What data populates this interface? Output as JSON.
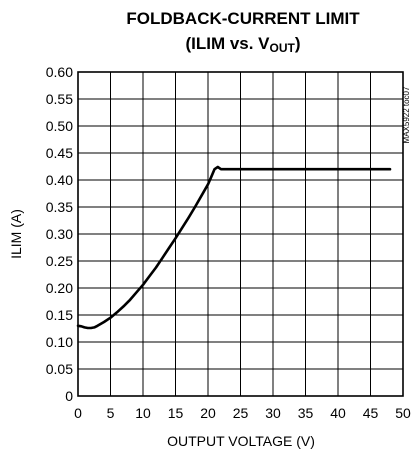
{
  "chart_data": {
    "type": "line",
    "title": "FOLDBACK-CURRENT LIMIT",
    "subtitle": {
      "prefix": "(ILIM vs. V",
      "subscript": "OUT",
      "suffix": ")"
    },
    "xlabel": "OUTPUT VOLTAGE (V)",
    "ylabel": "ILIM (A)",
    "xlim": [
      0,
      50
    ],
    "ylim": [
      0,
      0.6
    ],
    "x_ticks": [
      "0",
      "5",
      "10",
      "15",
      "20",
      "25",
      "30",
      "35",
      "40",
      "45",
      "50"
    ],
    "y_ticks": [
      "0",
      "0.05",
      "0.10",
      "0.15",
      "0.20",
      "0.25",
      "0.30",
      "0.35",
      "0.40",
      "0.45",
      "0.50",
      "0.55",
      "0.60"
    ],
    "grid": true,
    "legend": "none",
    "annotation": "MAX5922 toc07",
    "series": [
      {
        "color": "#000000",
        "x": [
          0,
          0.5,
          1.0,
          1.5,
          2.0,
          2.5,
          3,
          4,
          5,
          6,
          7,
          8,
          9,
          10,
          11,
          12,
          13,
          14,
          15,
          16,
          17,
          18,
          19,
          20,
          20.5,
          21,
          21.5,
          22,
          25,
          30,
          35,
          40,
          45,
          48
        ],
        "y": [
          0.13,
          0.129,
          0.127,
          0.126,
          0.126,
          0.127,
          0.13,
          0.137,
          0.145,
          0.155,
          0.166,
          0.178,
          0.192,
          0.206,
          0.222,
          0.238,
          0.256,
          0.274,
          0.292,
          0.311,
          0.33,
          0.35,
          0.371,
          0.392,
          0.406,
          0.42,
          0.424,
          0.42,
          0.42,
          0.42,
          0.42,
          0.42,
          0.42,
          0.42
        ]
      }
    ]
  }
}
